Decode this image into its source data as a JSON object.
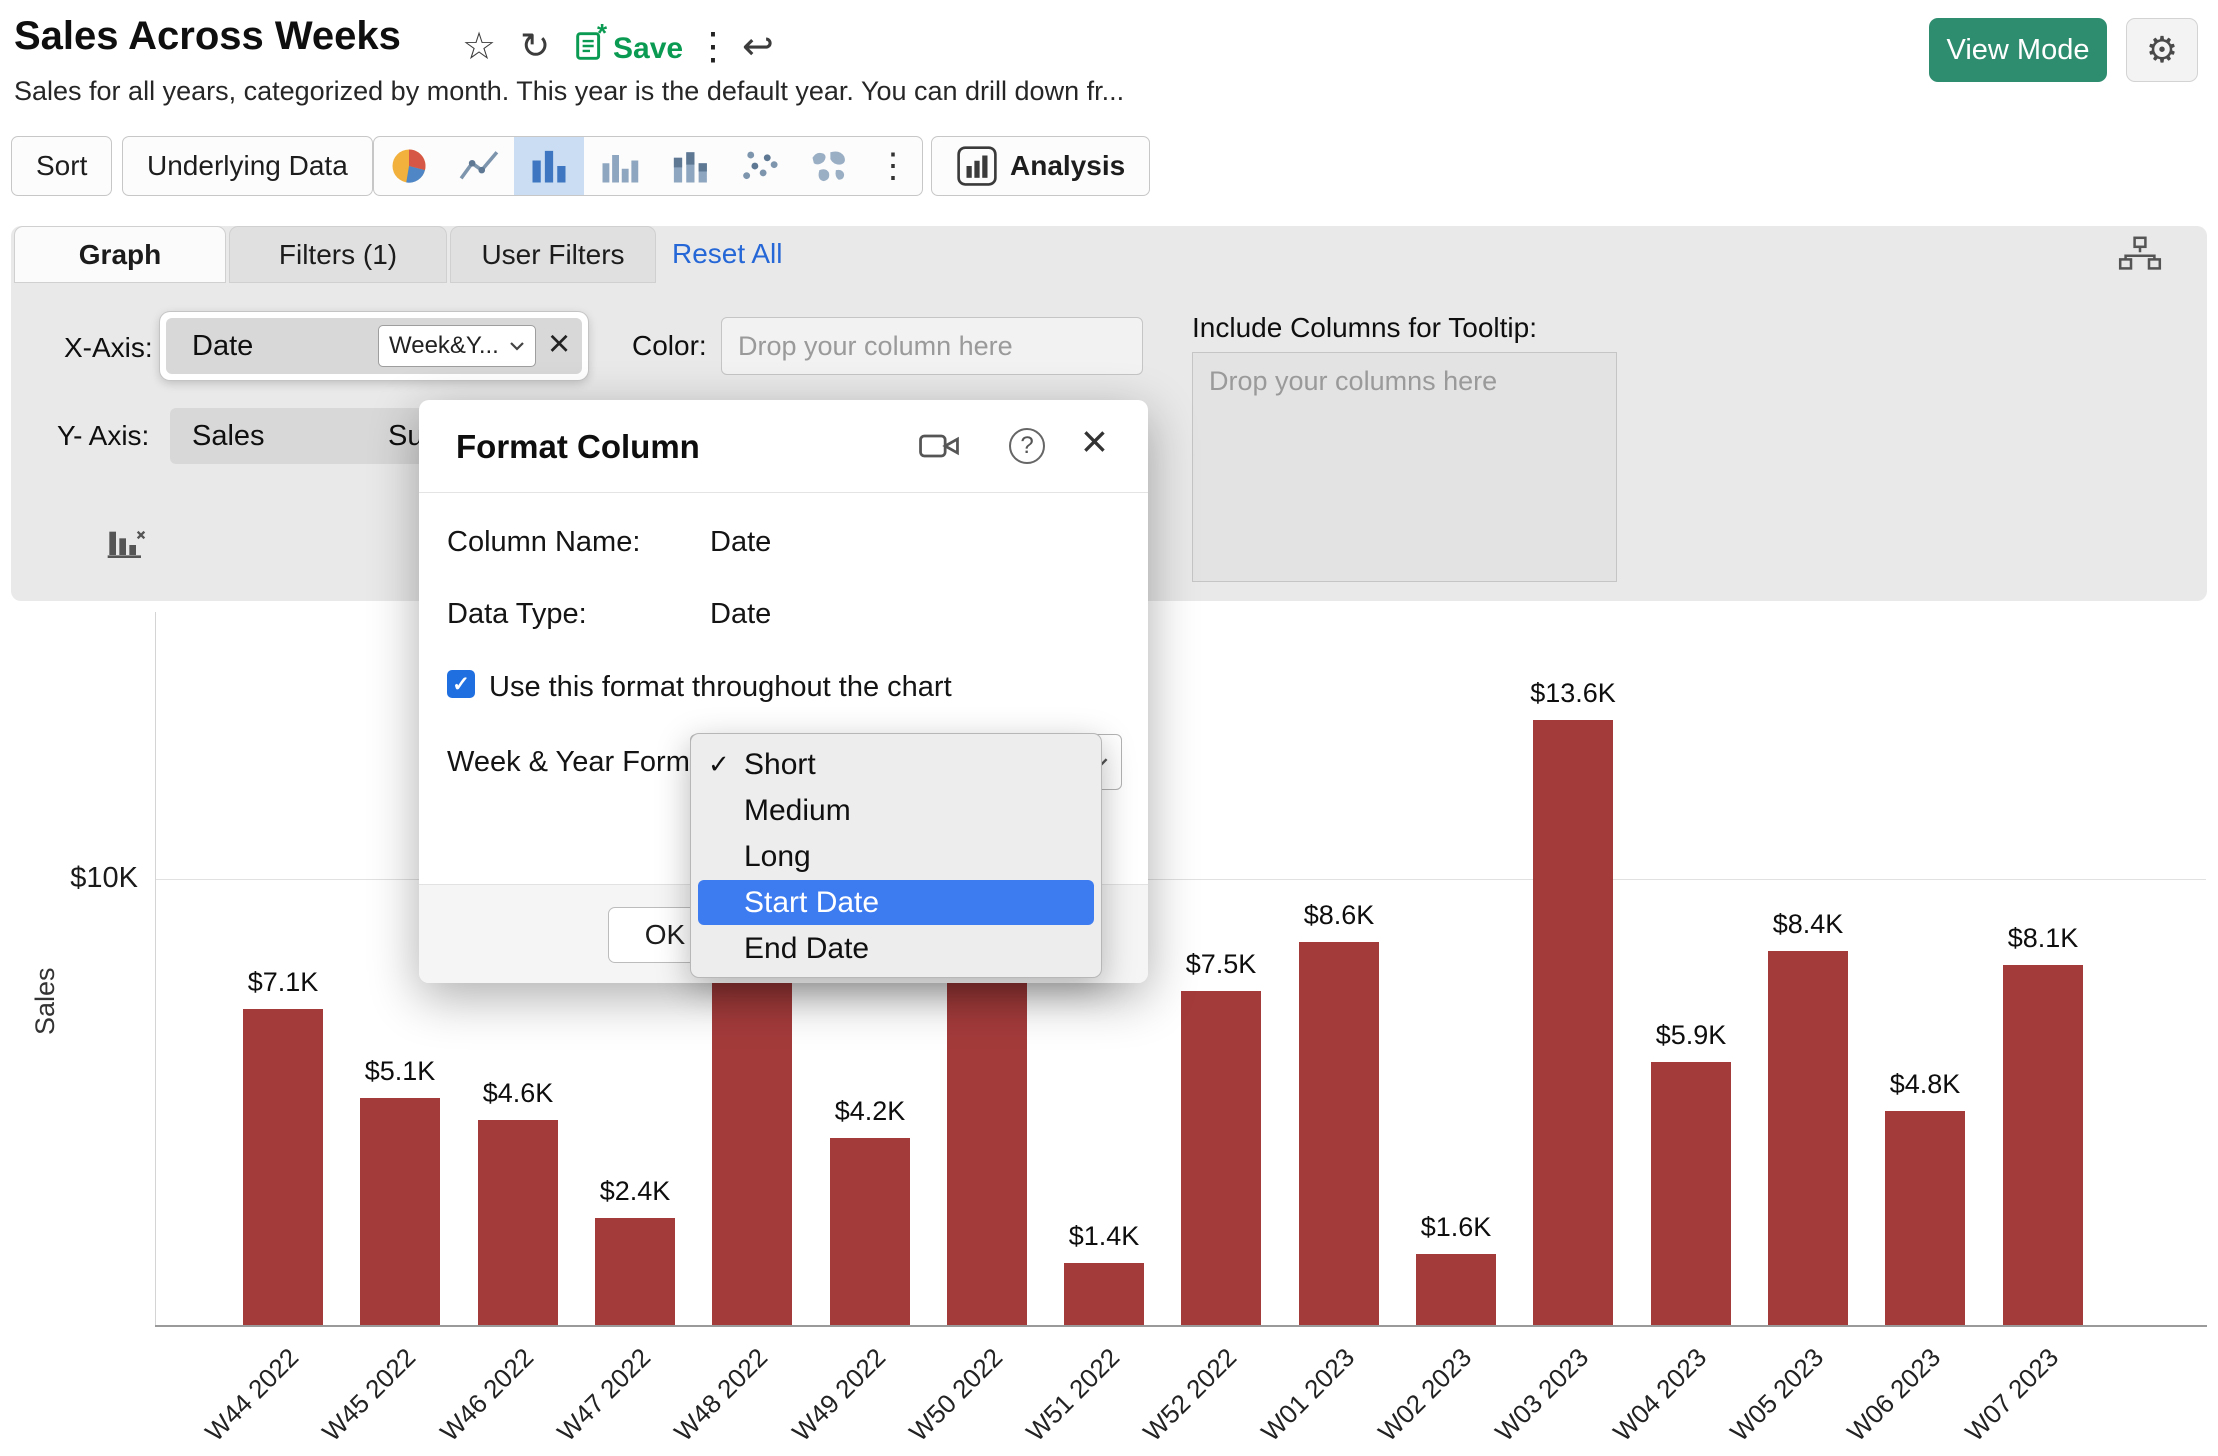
{
  "header": {
    "title": "Sales Across Weeks",
    "subtitle": "Sales for all years, categorized by month. This year is the default year. You can drill down fr...",
    "save_label": "Save",
    "view_mode_label": "View Mode"
  },
  "toolbar": {
    "sort_label": "Sort",
    "underlying_data_label": "Underlying Data",
    "analysis_label": "Analysis",
    "chart_types": [
      "pie-chart",
      "line-chart",
      "bar-chart",
      "grouped-bar-chart",
      "stacked-bar-chart",
      "scatter-plot",
      "world-map"
    ],
    "selected_chart_type": "bar-chart"
  },
  "tabs": {
    "graph_label": "Graph",
    "filters_label": "Filters (1)",
    "user_filters_label": "User Filters",
    "reset_all_label": "Reset All"
  },
  "config": {
    "x_axis_label": "X-Axis:",
    "x_axis_column": "Date",
    "x_axis_function": "Week&Y...",
    "color_label": "Color:",
    "color_placeholder": "Drop your column here",
    "tooltip_heading": "Include Columns for Tooltip:",
    "tooltip_placeholder": "Drop your columns here",
    "y_axis_label": "Y- Axis:",
    "y_axis_column": "Sales",
    "y_axis_function_partial": "Su"
  },
  "modal": {
    "title": "Format Column",
    "column_name_label": "Column Name:",
    "column_name_value": "Date",
    "data_type_label": "Data Type:",
    "data_type_value": "Date",
    "checkbox_checked": true,
    "checkbox_label": "Use this format throughout the chart",
    "format_label": "Week & Year Forma",
    "ok_label": "OK",
    "dropdown": {
      "options": [
        {
          "label": "Short",
          "checked": true,
          "highlighted": false
        },
        {
          "label": "Medium",
          "checked": false,
          "highlighted": false
        },
        {
          "label": "Long",
          "checked": false,
          "highlighted": false
        },
        {
          "label": "Start Date",
          "checked": false,
          "highlighted": true
        },
        {
          "label": "End Date",
          "checked": false,
          "highlighted": false
        }
      ]
    }
  },
  "chart_data": {
    "type": "bar",
    "ylabel": "Sales",
    "ytick_label": "$10K",
    "ylim": [
      0,
      14
    ],
    "bar_color": "#A43B3B",
    "categories": [
      "W44 2022",
      "W45 2022",
      "W46 2022",
      "W47 2022",
      "W48 2022",
      "W49 2022",
      "W50 2022",
      "W51 2022",
      "W52 2022",
      "W01 2023",
      "W02 2023",
      "W03 2023",
      "W04 2023",
      "W05 2023",
      "W06 2023",
      "W07 2023"
    ],
    "values": [
      7.1,
      5.1,
      4.6,
      2.4,
      11.0,
      4.2,
      9.5,
      1.4,
      7.5,
      8.6,
      1.6,
      13.6,
      5.9,
      8.4,
      4.8,
      8.1
    ],
    "value_labels": [
      "$7.1K",
      "$5.1K",
      "$4.6K",
      "$2.4K",
      "",
      "$4.2K",
      "",
      "$1.4K",
      "$7.5K",
      "$8.6K",
      "$1.6K",
      "$13.6K",
      "$5.9K",
      "$8.4K",
      "$4.8K",
      "$8.1K"
    ]
  },
  "colors": {
    "accent_green": "#2E8C6F",
    "save_green": "#0B9A52",
    "link_blue": "#2567D6",
    "selected_icon_bg": "#CBDDF2",
    "highlight_blue": "#3D7BF0",
    "bar_maroon": "#A43B3B"
  },
  "icons": {
    "star": "☆",
    "refresh": "↻",
    "kebab": "⋮",
    "undo": "↩",
    "gear": "⚙",
    "close": "×",
    "check": "✓",
    "help": "?",
    "asterisk": "*"
  }
}
